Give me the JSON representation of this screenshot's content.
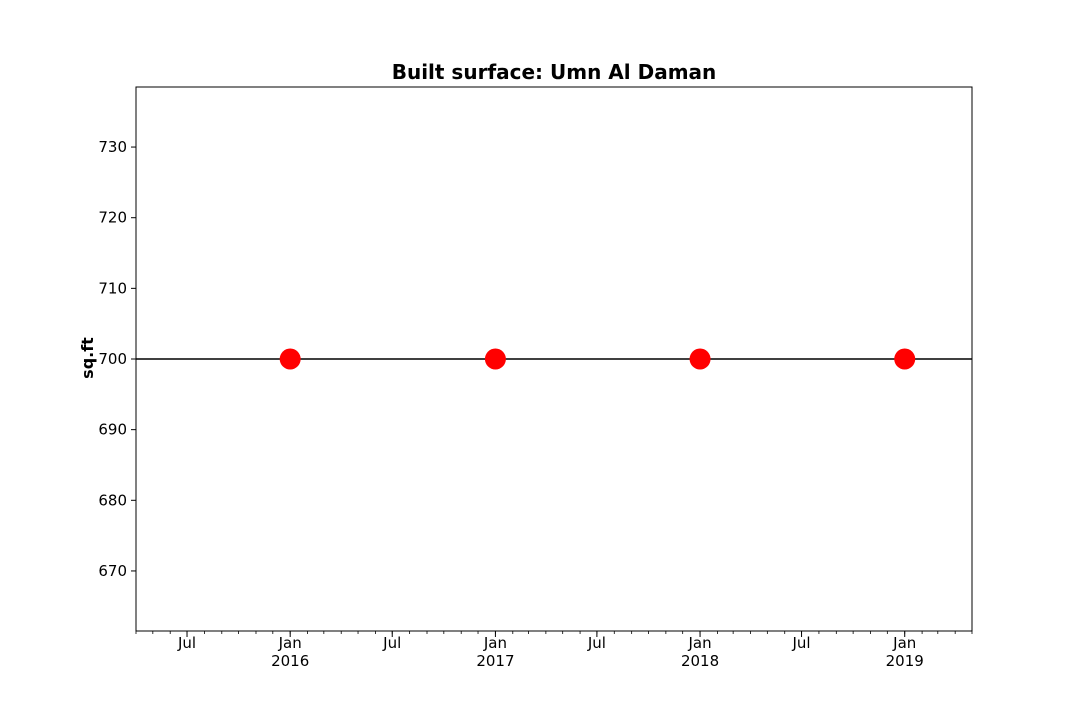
{
  "chart_data": {
    "type": "scatter",
    "title": "Built surface: Umn Al Daman",
    "xlabel": "",
    "ylabel": "sq.ft",
    "x_type": "date",
    "xlim": [
      "2015-04-01",
      "2019-05-01"
    ],
    "ylim": [
      661.5,
      738.5
    ],
    "y_ticks": [
      670,
      680,
      690,
      700,
      710,
      720,
      730
    ],
    "x_major_ticks": [
      {
        "date": "2015-07-01",
        "line1": "Jul",
        "line2": ""
      },
      {
        "date": "2016-01-01",
        "line1": "Jan",
        "line2": "2016"
      },
      {
        "date": "2016-07-01",
        "line1": "Jul",
        "line2": ""
      },
      {
        "date": "2017-01-01",
        "line1": "Jan",
        "line2": "2017"
      },
      {
        "date": "2017-07-01",
        "line1": "Jul",
        "line2": ""
      },
      {
        "date": "2018-01-01",
        "line1": "Jan",
        "line2": "2018"
      },
      {
        "date": "2018-07-01",
        "line1": "Jul",
        "line2": ""
      },
      {
        "date": "2019-01-01",
        "line1": "Jan",
        "line2": "2019"
      }
    ],
    "x_minor_ticks": "monthly",
    "reference_line": {
      "y": 700,
      "color": "#000000"
    },
    "series": [
      {
        "color": "#ff0000",
        "points": [
          {
            "x": "2016-01-01",
            "y": 700
          },
          {
            "x": "2017-01-01",
            "y": 700
          },
          {
            "x": "2018-01-01",
            "y": 700
          },
          {
            "x": "2019-01-01",
            "y": 700
          }
        ]
      }
    ],
    "grid": false,
    "legend": "none"
  }
}
